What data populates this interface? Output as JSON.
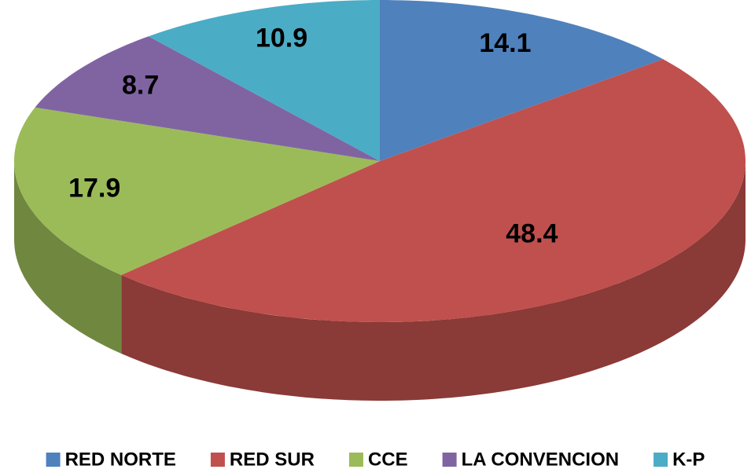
{
  "chart_data": {
    "type": "pie",
    "categories": [
      "RED NORTE",
      "RED SUR",
      "CCE",
      "LA CONVENCION",
      "K-P"
    ],
    "values": [
      14.1,
      48.4,
      17.9,
      8.7,
      10.9
    ],
    "colors": [
      "#4f81bd",
      "#c0504d",
      "#9bbb59",
      "#8064a2",
      "#4bacc6"
    ],
    "legend": "bottom"
  }
}
